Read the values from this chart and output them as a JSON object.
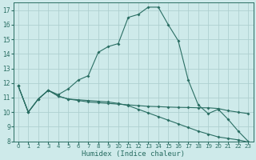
{
  "xlabel": "Humidex (Indice chaleur)",
  "ylabel": "",
  "xlim": [
    -0.5,
    23.5
  ],
  "ylim": [
    8,
    17.5
  ],
  "yticks": [
    8,
    9,
    10,
    11,
    12,
    13,
    14,
    15,
    16,
    17
  ],
  "xticks": [
    0,
    1,
    2,
    3,
    4,
    5,
    6,
    7,
    8,
    9,
    10,
    11,
    12,
    13,
    14,
    15,
    16,
    17,
    18,
    19,
    20,
    21,
    22,
    23
  ],
  "bg_color": "#ceeaea",
  "line_color": "#2a6e63",
  "grid_color": "#aed0d0",
  "line1_x": [
    0,
    1,
    2,
    3,
    4,
    5,
    6,
    7,
    8,
    9,
    10,
    11,
    12,
    13,
    14,
    15,
    16,
    17,
    18,
    19,
    20,
    21,
    22,
    23
  ],
  "line1_y": [
    11.8,
    10.0,
    10.9,
    11.5,
    11.2,
    11.6,
    12.2,
    12.5,
    14.1,
    14.5,
    14.7,
    16.5,
    16.7,
    17.2,
    17.2,
    16.0,
    14.9,
    12.2,
    10.5,
    9.9,
    10.2,
    9.5,
    8.7,
    8.0
  ],
  "line2_x": [
    0,
    1,
    2,
    3,
    4,
    5,
    6,
    7,
    8,
    9,
    10,
    11,
    12,
    13,
    14,
    15,
    16,
    17,
    18,
    19,
    20,
    21,
    22,
    23
  ],
  "line2_y": [
    11.8,
    10.0,
    10.9,
    11.5,
    11.1,
    10.9,
    10.8,
    10.7,
    10.65,
    10.6,
    10.55,
    10.5,
    10.45,
    10.4,
    10.38,
    10.35,
    10.33,
    10.32,
    10.3,
    10.3,
    10.25,
    10.1,
    10.0,
    9.9
  ],
  "line3_x": [
    0,
    1,
    2,
    3,
    4,
    5,
    6,
    7,
    8,
    9,
    10,
    11,
    12,
    13,
    14,
    15,
    16,
    17,
    18,
    19,
    20,
    21,
    22,
    23
  ],
  "line3_y": [
    11.8,
    10.0,
    10.9,
    11.5,
    11.1,
    10.9,
    10.85,
    10.8,
    10.75,
    10.7,
    10.6,
    10.45,
    10.2,
    9.95,
    9.7,
    9.45,
    9.2,
    8.95,
    8.7,
    8.5,
    8.3,
    8.2,
    8.1,
    7.95
  ]
}
